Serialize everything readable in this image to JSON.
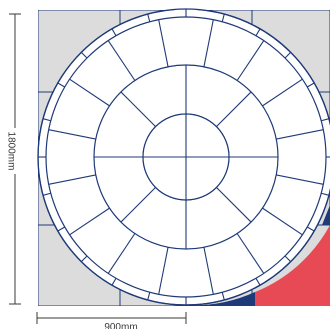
{
  "dimensions": {
    "vertical_label": "1800mm",
    "horizontal_label": "900mm"
  },
  "pattern": {
    "rings": [
      {
        "name": "centre",
        "segments": 1
      },
      {
        "name": "inner-ring",
        "segments": 8
      },
      {
        "name": "middle-ring",
        "segments": 16
      },
      {
        "name": "outer-ring",
        "segments": 24
      }
    ]
  },
  "colors": {
    "outline": "#1f3a78",
    "background_tile": "#dcdcdc",
    "paver_fill": "#ffffff",
    "highlight_red": "#e84a55",
    "highlight_blue": "#1f3a78",
    "dimension_line": "#3a3a3a"
  }
}
